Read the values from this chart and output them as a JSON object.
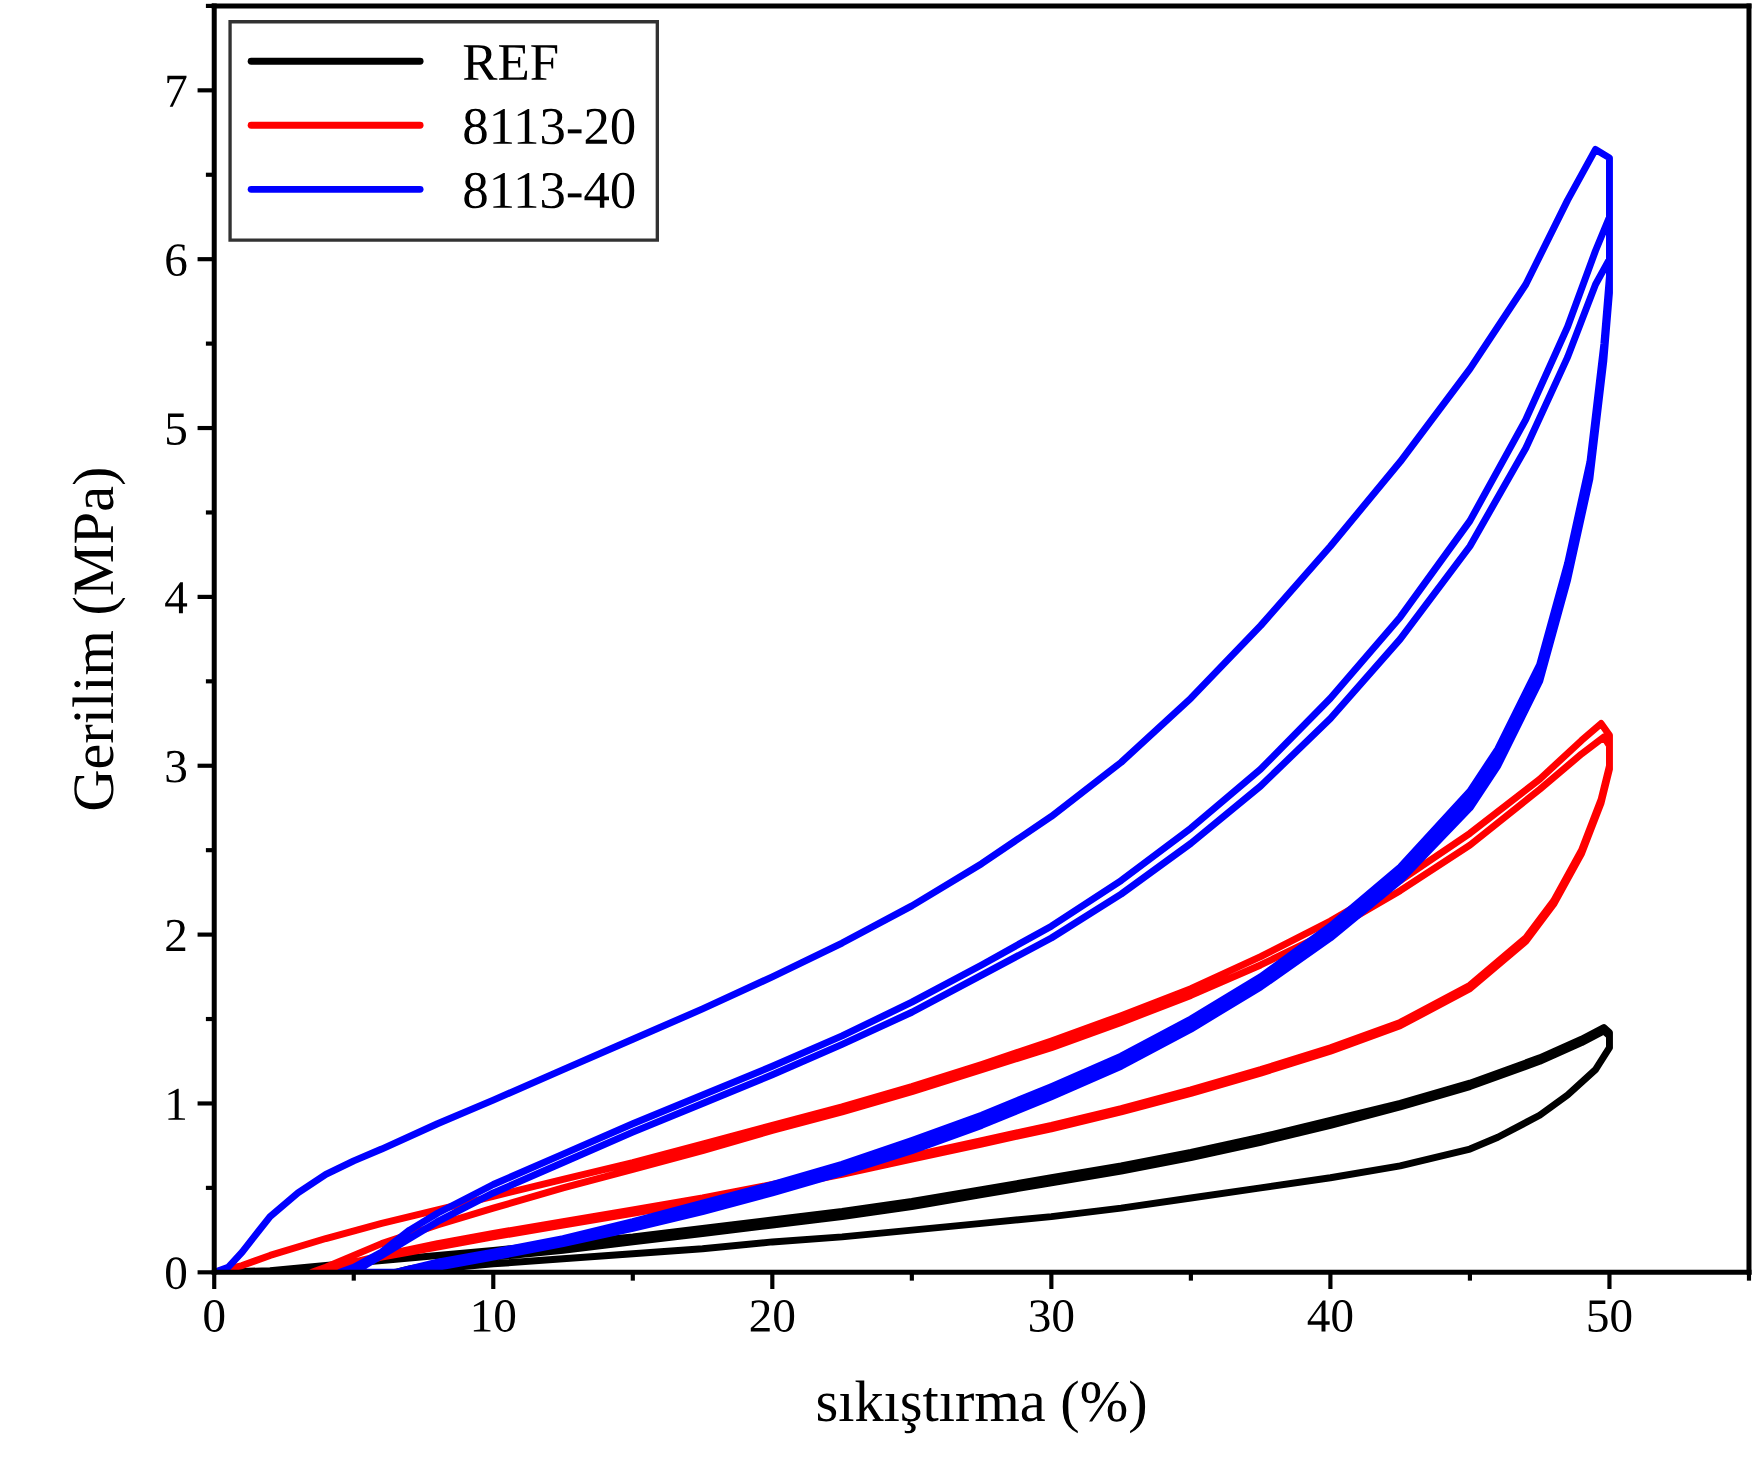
{
  "chart_data": {
    "type": "line",
    "xlabel": "sıkıştırma (%)",
    "ylabel": "Gerilim (MPa)",
    "xlim": [
      0,
      55
    ],
    "ylim": [
      0,
      7.5
    ],
    "xticks": [
      0,
      10,
      20,
      30,
      40,
      50
    ],
    "yticks": [
      0,
      1,
      2,
      3,
      4,
      5,
      6,
      7
    ],
    "grid": false,
    "legend": "top left",
    "line_style": "solid",
    "marker": "none",
    "series": [
      {
        "name": "REF",
        "color": "#000000",
        "x": [
          0,
          2,
          4,
          6,
          8,
          10,
          12.5,
          15,
          17.5,
          20,
          22.5,
          25,
          27.5,
          30,
          32.5,
          35,
          37.5,
          40,
          42.5,
          45,
          47.5,
          49,
          49.8,
          50,
          50,
          49.5,
          48.5,
          47.5,
          46,
          45,
          42.5,
          40,
          37.5,
          35,
          32.5,
          30,
          27.5,
          25,
          22.5,
          20,
          17.5,
          15,
          12.5,
          10,
          8,
          6.5,
          7,
          8,
          10,
          12.5,
          15,
          17.5,
          20,
          22.5,
          25,
          27.5,
          30,
          32.5,
          35,
          37.5,
          40,
          42.5,
          45,
          47.5,
          49,
          49.8,
          50,
          50,
          49.5,
          48.5,
          47.5,
          46,
          45,
          42.5,
          40,
          37.5,
          35,
          32.5,
          30,
          27.5,
          25,
          22.5,
          20,
          17.5,
          15,
          12.5,
          10,
          8,
          6.5
        ],
        "values": [
          0,
          0.01,
          0.04,
          0.07,
          0.1,
          0.13,
          0.17,
          0.21,
          0.26,
          0.31,
          0.36,
          0.42,
          0.49,
          0.56,
          0.63,
          0.71,
          0.8,
          0.9,
          1.0,
          1.12,
          1.27,
          1.38,
          1.45,
          1.42,
          1.33,
          1.2,
          1.05,
          0.93,
          0.8,
          0.73,
          0.63,
          0.56,
          0.5,
          0.44,
          0.38,
          0.33,
          0.29,
          0.25,
          0.21,
          0.18,
          0.14,
          0.11,
          0.08,
          0.05,
          0.02,
          0,
          0.02,
          0.05,
          0.09,
          0.13,
          0.18,
          0.23,
          0.28,
          0.33,
          0.39,
          0.46,
          0.53,
          0.6,
          0.68,
          0.77,
          0.87,
          0.98,
          1.1,
          1.25,
          1.36,
          1.43,
          1.4,
          1.33,
          1.2,
          1.05,
          0.93,
          0.8,
          0.73,
          0.63,
          0.56,
          0.5,
          0.44,
          0.38,
          0.33,
          0.29,
          0.25,
          0.21,
          0.18,
          0.14,
          0.11,
          0.08,
          0.05,
          0.02,
          0
        ]
      },
      {
        "name": "8113-20",
        "color": "#ff0000",
        "x": [
          0,
          1,
          2,
          4,
          6,
          8,
          10,
          12.5,
          15,
          17.5,
          20,
          22.5,
          25,
          27.5,
          30,
          32.5,
          35,
          37.5,
          40,
          42.5,
          45,
          47.5,
          49,
          49.7,
          50,
          50,
          49.7,
          49,
          48,
          47,
          45,
          42.5,
          40,
          37.5,
          35,
          32.5,
          30,
          27.5,
          25,
          22.5,
          20,
          17.5,
          15,
          12.5,
          10,
          8,
          6,
          4.5,
          3.5,
          4,
          5,
          6,
          8,
          10,
          12.5,
          15,
          17.5,
          20,
          22.5,
          25,
          27.5,
          30,
          32.5,
          35,
          37.5,
          40,
          42.5,
          45,
          47.5,
          49,
          49.8,
          50,
          50,
          49.7,
          49,
          48,
          47,
          45,
          42.5,
          40,
          37.5,
          35,
          32.5,
          30,
          27.5,
          25,
          22.5,
          20,
          17.5,
          15,
          12.5,
          10,
          8,
          6,
          4.5,
          3.5
        ],
        "values": [
          0,
          0.04,
          0.1,
          0.2,
          0.29,
          0.37,
          0.45,
          0.55,
          0.65,
          0.76,
          0.87,
          0.98,
          1.1,
          1.23,
          1.37,
          1.52,
          1.68,
          1.87,
          2.08,
          2.32,
          2.6,
          2.92,
          3.15,
          3.25,
          3.18,
          3.0,
          2.8,
          2.5,
          2.2,
          1.98,
          1.7,
          1.48,
          1.33,
          1.2,
          1.08,
          0.97,
          0.87,
          0.78,
          0.69,
          0.6,
          0.52,
          0.44,
          0.37,
          0.3,
          0.23,
          0.17,
          0.1,
          0.04,
          0,
          0.03,
          0.1,
          0.17,
          0.28,
          0.38,
          0.5,
          0.61,
          0.72,
          0.84,
          0.95,
          1.07,
          1.2,
          1.33,
          1.48,
          1.64,
          1.82,
          2.02,
          2.26,
          2.53,
          2.86,
          3.07,
          3.17,
          3.12,
          2.98,
          2.78,
          2.48,
          2.18,
          1.96,
          1.68,
          1.46,
          1.31,
          1.18,
          1.06,
          0.95,
          0.85,
          0.76,
          0.67,
          0.58,
          0.5,
          0.42,
          0.35,
          0.28,
          0.21,
          0.15,
          0.09,
          0.03,
          0
        ]
      },
      {
        "name": "8113-40",
        "color": "#0000ff",
        "x": [
          0,
          0.5,
          1,
          2,
          3,
          4,
          5,
          6,
          8,
          10,
          12.5,
          15,
          17.5,
          20,
          22.5,
          25,
          27.5,
          30,
          32.5,
          35,
          37.5,
          40,
          42.5,
          45,
          47,
          48.5,
          49.5,
          50,
          50,
          49.8,
          49.3,
          48.5,
          47.5,
          46,
          45,
          42.5,
          40,
          37.5,
          35,
          32.5,
          30,
          27.5,
          25,
          22.5,
          20,
          17.5,
          15,
          12.5,
          10,
          8,
          6.5,
          4.5,
          5,
          6,
          7,
          8,
          10,
          12.5,
          15,
          17.5,
          20,
          22.5,
          25,
          27.5,
          30,
          32.5,
          35,
          37.5,
          40,
          42.5,
          45,
          47,
          48.5,
          49.5,
          50,
          50,
          49.8,
          49.3,
          48.5,
          47.5,
          46,
          45,
          42.5,
          40,
          37.5,
          35,
          32.5,
          30,
          27.5,
          25,
          22.5,
          20,
          17.5,
          15,
          12.5,
          10,
          8,
          6.5,
          5,
          5.5,
          6,
          7,
          8,
          10,
          12.5,
          15,
          17.5,
          20,
          22.5,
          25,
          27.5,
          30,
          32.5,
          35,
          37.5,
          40,
          42.5,
          45,
          47,
          48.5,
          49.5,
          50,
          50,
          49.8,
          49.3,
          48.5,
          47.5,
          46,
          45,
          42.5,
          40,
          37.5,
          35,
          32.5,
          30,
          27.5,
          25,
          22.5,
          20,
          17.5,
          15,
          12.5,
          10,
          8,
          6.5
        ],
        "values": [
          0,
          0.03,
          0.12,
          0.33,
          0.47,
          0.58,
          0.66,
          0.73,
          0.88,
          1.02,
          1.2,
          1.38,
          1.56,
          1.75,
          1.95,
          2.17,
          2.42,
          2.7,
          3.02,
          3.4,
          3.83,
          4.3,
          4.8,
          5.35,
          5.85,
          6.35,
          6.65,
          6.6,
          5.9,
          5.5,
          4.8,
          4.2,
          3.6,
          3.1,
          2.85,
          2.4,
          2.05,
          1.75,
          1.5,
          1.28,
          1.1,
          0.93,
          0.78,
          0.64,
          0.52,
          0.41,
          0.3,
          0.2,
          0.12,
          0.06,
          0,
          0,
          0.03,
          0.12,
          0.25,
          0.35,
          0.52,
          0.7,
          0.88,
          1.05,
          1.22,
          1.4,
          1.6,
          1.82,
          2.05,
          2.32,
          2.63,
          2.98,
          3.4,
          3.88,
          4.45,
          5.05,
          5.6,
          6.05,
          6.25,
          5.85,
          5.45,
          4.75,
          4.15,
          3.55,
          3.05,
          2.8,
          2.36,
          2.02,
          1.72,
          1.47,
          1.25,
          1.07,
          0.9,
          0.75,
          0.61,
          0.5,
          0.39,
          0.28,
          0.19,
          0.11,
          0.05,
          0,
          0,
          0.05,
          0.1,
          0.2,
          0.3,
          0.47,
          0.65,
          0.83,
          1.0,
          1.17,
          1.35,
          1.54,
          1.76,
          1.98,
          2.24,
          2.54,
          2.88,
          3.28,
          3.75,
          4.3,
          4.88,
          5.42,
          5.85,
          6.0,
          5.8,
          5.4,
          4.7,
          4.1,
          3.5,
          3.0,
          2.75,
          2.32,
          1.98,
          1.69,
          1.44,
          1.22,
          1.04,
          0.87,
          0.72,
          0.59,
          0.47,
          0.36,
          0.26,
          0.17,
          0.09,
          0.03,
          0
        ]
      }
    ]
  }
}
